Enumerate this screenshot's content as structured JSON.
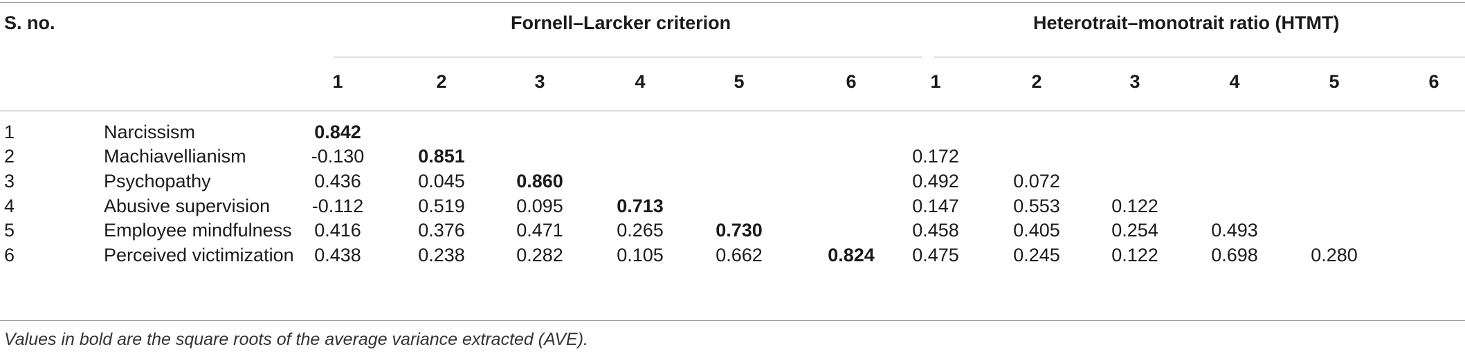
{
  "table": {
    "col_sno": "S. no.",
    "group_fl": "Fornell–Larcker criterion",
    "group_htmt": "Heterotrait–monotrait ratio (HTMT)",
    "fl_cols": [
      "1",
      "2",
      "3",
      "4",
      "5",
      "6"
    ],
    "htmt_cols": [
      "1",
      "2",
      "3",
      "4",
      "5",
      "6"
    ],
    "rows": [
      {
        "sno": "1",
        "name": "Narcissism",
        "fl": [
          "0.842",
          "",
          "",
          "",
          "",
          ""
        ],
        "htmt": [
          "",
          "",
          "",
          "",
          "",
          ""
        ]
      },
      {
        "sno": "2",
        "name": "Machiavellianism",
        "fl": [
          "-0.130",
          "0.851",
          "",
          "",
          "",
          ""
        ],
        "htmt": [
          "0.172",
          "",
          "",
          "",
          "",
          ""
        ]
      },
      {
        "sno": "3",
        "name": "Psychopathy",
        "fl": [
          "0.436",
          "0.045",
          "0.860",
          "",
          "",
          ""
        ],
        "htmt": [
          "0.492",
          "0.072",
          "",
          "",
          "",
          ""
        ]
      },
      {
        "sno": "4",
        "name": "Abusive supervision",
        "fl": [
          "-0.112",
          "0.519",
          "0.095",
          "0.713",
          "",
          ""
        ],
        "htmt": [
          "0.147",
          "0.553",
          "0.122",
          "",
          "",
          ""
        ]
      },
      {
        "sno": "5",
        "name": "Employee mindfulness",
        "fl": [
          "0.416",
          "0.376",
          "0.471",
          "0.265",
          "0.730",
          ""
        ],
        "htmt": [
          "0.458",
          "0.405",
          "0.254",
          "0.493",
          "",
          ""
        ]
      },
      {
        "sno": "6",
        "name": "Perceived victimization",
        "fl": [
          "0.438",
          "0.238",
          "0.282",
          "0.105",
          "0.662",
          "0.824"
        ],
        "htmt": [
          "0.475",
          "0.245",
          "0.122",
          "0.698",
          "0.280",
          ""
        ]
      }
    ],
    "footnote": "Values in bold are the square roots of the average variance extracted (AVE)."
  }
}
